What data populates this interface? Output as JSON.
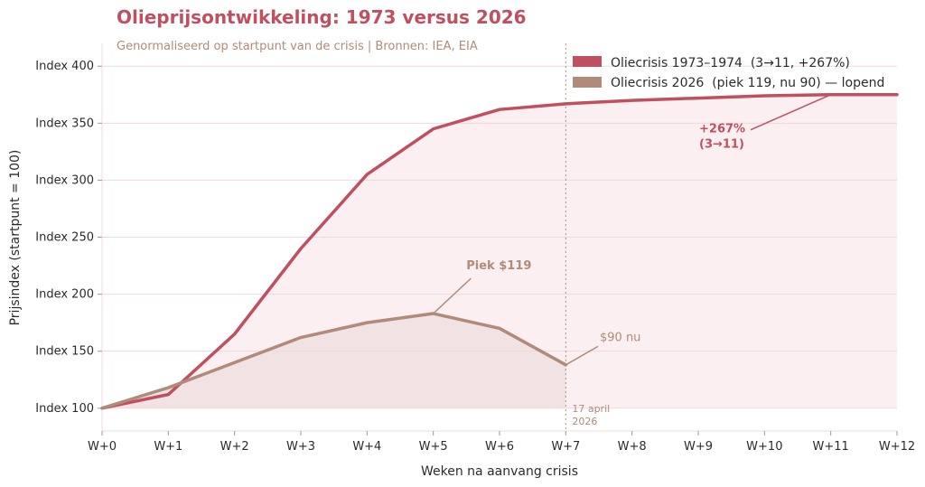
{
  "colors": {
    "series_1973": "#c0505f",
    "series_2026": "#b08b79",
    "fill_1973": "#fbeff1",
    "fill_2026": "#f1e3e3",
    "grid": "#efd9dc",
    "title": "#c0505f",
    "subtitle": "#b08b79"
  },
  "chart_data": {
    "type": "line",
    "title": "Olieprijsontwikkeling: 1973 versus 2026",
    "subtitle": "Genormaliseerd op startpunt van de crisis | Bronnen: IEA, EIA",
    "xlabel": "Weken na aanvang crisis",
    "ylabel": "Prijsindex (startpunt = 100)",
    "categories": [
      "W+0",
      "W+1",
      "W+2",
      "W+3",
      "W+4",
      "W+5",
      "W+6",
      "W+7",
      "W+8",
      "W+9",
      "W+10",
      "W+11",
      "W+12"
    ],
    "x": [
      0,
      1,
      2,
      3,
      4,
      5,
      6,
      7,
      8,
      9,
      10,
      11,
      12
    ],
    "ylim": [
      80,
      420
    ],
    "yticks": [
      100,
      150,
      200,
      250,
      300,
      350,
      400
    ],
    "ytick_labels": [
      "Index 100",
      "Index 150",
      "Index 200",
      "Index 250",
      "Index 300",
      "Index 350",
      "Index 400"
    ],
    "grid": true,
    "legend_position": "top-right",
    "series": [
      {
        "name": "Oliecrisis 1973–1974  (3→11, +267%)",
        "x": [
          0,
          1,
          2,
          3,
          4,
          5,
          6,
          7,
          8,
          9,
          10,
          11,
          12
        ],
        "values": [
          100,
          112,
          165,
          240,
          305,
          345,
          362,
          367,
          370,
          372,
          374,
          375,
          375
        ]
      },
      {
        "name": "Oliecrisis 2026  (piek 119, nu 90) — lopend",
        "x": [
          0,
          1,
          2,
          3,
          4,
          5,
          6,
          7
        ],
        "values": [
          100,
          118,
          140,
          162,
          175,
          183,
          170,
          138
        ]
      }
    ],
    "vline": {
      "x": 7,
      "label_line1": "17 april",
      "label_line2": "2026"
    },
    "annotations": [
      {
        "id": "peak",
        "text": "Piek $119",
        "point_x": 5,
        "point_y": 183,
        "text_x": 5.5,
        "text_y": 217
      },
      {
        "id": "now",
        "text": "$90 nu",
        "point_x": 7,
        "point_y": 138,
        "text_x": 7.5,
        "text_y": 155
      },
      {
        "id": "gain",
        "text_line1": "+267%",
        "text_line2": "(3→11)",
        "point_x": 11,
        "point_y": 375,
        "text_x": 9.0,
        "text_y": 345
      }
    ]
  }
}
